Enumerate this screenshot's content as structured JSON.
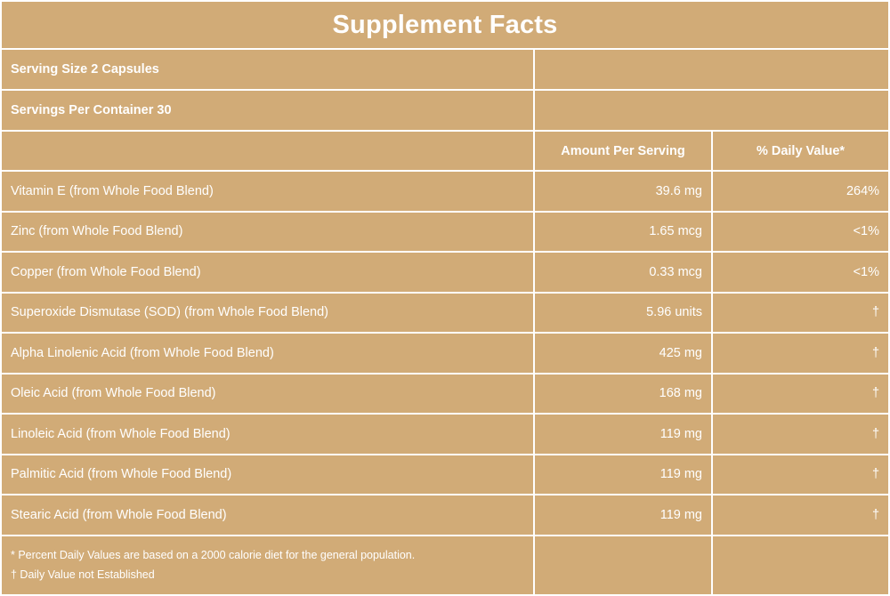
{
  "title": "Supplement Facts",
  "serving_size": "Serving Size 2 Capsules",
  "servings_per_container": "Servings Per Container 30",
  "columns": {
    "amount": "Amount Per Serving",
    "daily_value": "% Daily Value*"
  },
  "nutrients": [
    {
      "name": "Vitamin E (from Whole Food Blend)",
      "amount": "39.6 mg",
      "dv": "264%"
    },
    {
      "name": "Zinc (from Whole Food Blend)",
      "amount": "1.65 mcg",
      "dv": "<1%"
    },
    {
      "name": "Copper (from Whole Food Blend)",
      "amount": "0.33 mcg",
      "dv": "<1%"
    },
    {
      "name": "Superoxide Dismutase (SOD) (from Whole Food Blend)",
      "amount": "5.96 units",
      "dv": "†"
    },
    {
      "name": "Alpha Linolenic Acid (from Whole Food Blend)",
      "amount": "425 mg",
      "dv": "†"
    },
    {
      "name": "Oleic Acid (from Whole Food Blend)",
      "amount": "168 mg",
      "dv": "†"
    },
    {
      "name": "Linoleic Acid (from Whole Food Blend)",
      "amount": "119 mg",
      "dv": "†"
    },
    {
      "name": "Palmitic Acid (from Whole Food Blend)",
      "amount": "119 mg",
      "dv": "†"
    },
    {
      "name": "Stearic Acid (from Whole Food Blend)",
      "amount": "119 mg",
      "dv": "†"
    }
  ],
  "footnotes": {
    "percent": "* Percent Daily Values are based on a 2000 calorie diet for the general population.",
    "dagger": "† Daily Value not Established"
  },
  "colors": {
    "background": "#d1ab77",
    "text": "#ffffff",
    "rules": "#ffffff"
  }
}
